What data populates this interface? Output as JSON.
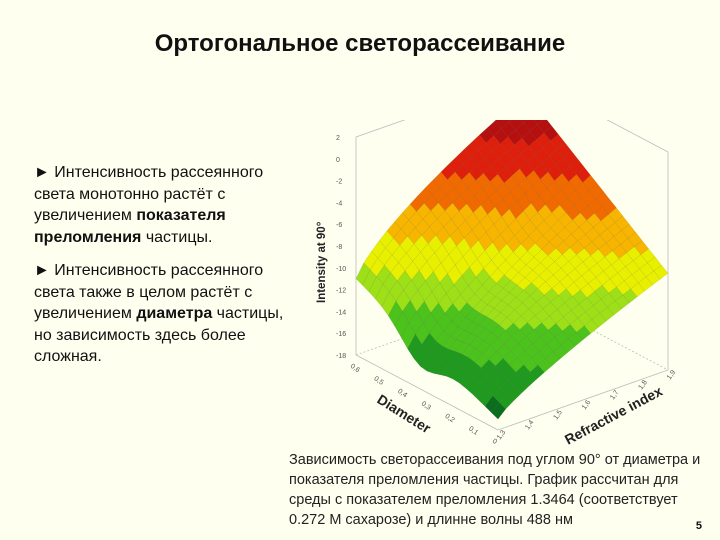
{
  "slide": {
    "title": "Ортогональное светорассеивание",
    "page_number": "5"
  },
  "bullets": [
    {
      "marker": "►",
      "pre": " Интенсивность рассеянного света монотонно растёт с увеличением ",
      "bold": "показателя преломления",
      "post": " частицы."
    },
    {
      "marker": "►",
      "pre": " Интенсивность рассеянного света также в целом растёт с увеличением ",
      "bold": "диаметра",
      "post": " частицы, но зависимость здесь более сложная."
    }
  ],
  "caption": "Зависимость светорассеивания под углом 90° от диаметра и показателя преломления частицы. График рассчитан для среды с показателем преломления 1.3464 (соответствует 0.272 М сахарозе) и длинне волны 488 нм",
  "chart_data": {
    "type": "surface",
    "zlabel": "Intensity at 90°",
    "xlabel": "Diameter",
    "ylabel": "Refractive index",
    "z_ticks": [
      "2",
      "0",
      "-2",
      "-4",
      "-6",
      "-8",
      "-10",
      "-12",
      "-14",
      "-16",
      "-18"
    ],
    "diameter_ticks": [
      "0,6",
      "0,5",
      "0,4",
      "0,3",
      "0,2",
      "0,1",
      "0"
    ],
    "refractive_ticks": [
      "1,3",
      "1,4",
      "1,5",
      "1,6",
      "1,7",
      "1,8",
      "1,9"
    ],
    "diameter_range": [
      0,
      0.6
    ],
    "refractive_range": [
      1.3,
      1.9
    ],
    "z_range": [
      -18,
      2
    ],
    "colors": [
      "#0a6e1e",
      "#1f9a1f",
      "#4cc21c",
      "#9ee018",
      "#e8f000",
      "#f7b500",
      "#f06a00",
      "#dd1f0c",
      "#b50f0f",
      "#7f0b0b"
    ]
  }
}
